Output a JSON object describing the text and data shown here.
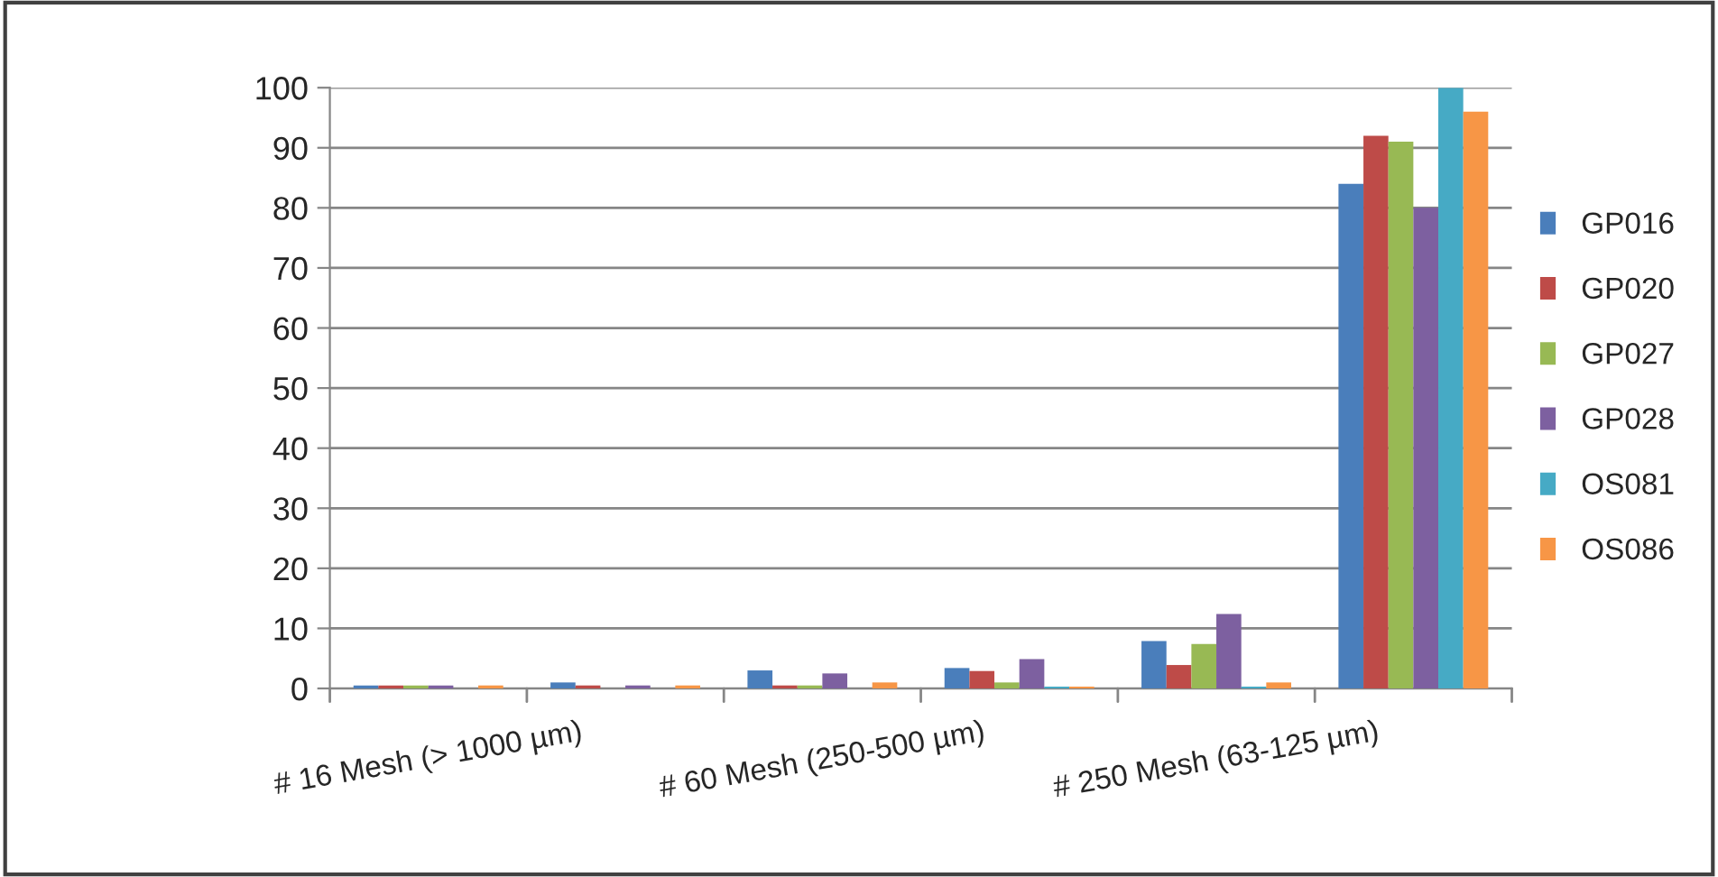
{
  "chart_data": {
    "type": "bar",
    "categories": [
      "# 16 Mesh (> 1000 µm)",
      null,
      "# 60 Mesh (250-500 µm)",
      null,
      "# 250 Mesh (63-125 µm)",
      null
    ],
    "series": [
      {
        "name": "GP016",
        "color": "#4a7ebb",
        "values": [
          0.5,
          1,
          3,
          3.4,
          7.9,
          84
        ]
      },
      {
        "name": "GP020",
        "color": "#be4b48",
        "values": [
          0.5,
          0.5,
          0.5,
          2.9,
          3.9,
          92
        ]
      },
      {
        "name": "GP027",
        "color": "#98b954",
        "values": [
          0.5,
          null,
          0.5,
          1,
          7.4,
          91
        ]
      },
      {
        "name": "GP028",
        "color": "#7d60a0",
        "values": [
          0.5,
          0.5,
          2.5,
          4.9,
          12.4,
          80
        ]
      },
      {
        "name": "OS081",
        "color": "#46aac5",
        "values": [
          null,
          null,
          null,
          0.3,
          0.3,
          100
        ]
      },
      {
        "name": "OS086",
        "color": "#f79646",
        "values": [
          0.5,
          0.5,
          1,
          0.3,
          1,
          96
        ]
      }
    ],
    "ylim": [
      0,
      100
    ],
    "yticks": [
      0,
      10,
      20,
      30,
      40,
      50,
      60,
      70,
      80,
      90,
      100
    ],
    "grid": "y",
    "legend": "right"
  }
}
